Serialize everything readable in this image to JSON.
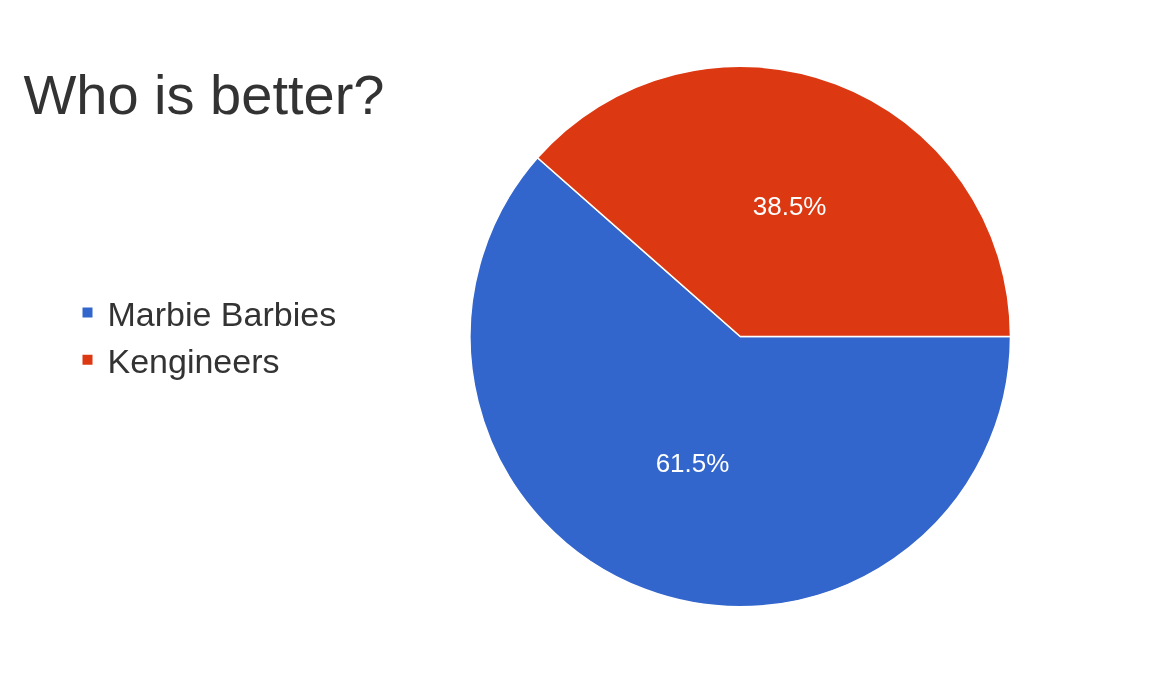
{
  "chart_data": {
    "type": "pie",
    "title": "Who is better?",
    "categories": [
      "Marbie Barbies",
      "Kengineers"
    ],
    "values": [
      61.5,
      38.5
    ],
    "colors": [
      "#3366cc",
      "#dc3912"
    ],
    "value_labels": [
      "61.5%",
      "38.5%"
    ],
    "legend": "left"
  }
}
